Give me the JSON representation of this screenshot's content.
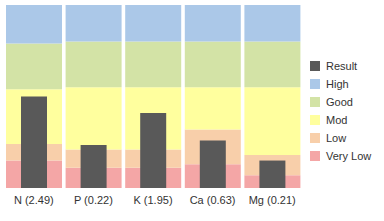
{
  "chart_data": {
    "type": "bar",
    "categories": [
      "N (2.49)",
      "P (0.22)",
      "K (1.95)",
      "Ca (0.63)",
      "Mg (0.21)"
    ],
    "series": [
      {
        "name": "Very Low",
        "color": "#f4a6a6",
        "type": "stacked_bar",
        "values": [
          15,
          11,
          11,
          13,
          7
        ]
      },
      {
        "name": "Low",
        "color": "#f8cfaa",
        "type": "stacked_bar",
        "values": [
          9,
          10,
          10,
          19,
          11
        ]
      },
      {
        "name": "Mod",
        "color": "#ffff9e",
        "type": "stacked_bar",
        "values": [
          30,
          34,
          34,
          23,
          37
        ]
      },
      {
        "name": "Good",
        "color": "#d3e3a6",
        "type": "stacked_bar",
        "values": [
          25,
          25,
          25,
          25,
          25
        ]
      },
      {
        "name": "High",
        "color": "#abc8e8",
        "type": "stacked_bar",
        "values": [
          21,
          20,
          20,
          20,
          20
        ]
      },
      {
        "name": "Result",
        "color": "#595959",
        "type": "bar",
        "values": [
          50,
          23.5,
          41,
          26,
          15
        ]
      }
    ],
    "ylim": [
      0,
      100
    ],
    "yticks": [
      0,
      100
    ],
    "stacked": true,
    "legend": "right",
    "tick_labels": "x"
  }
}
